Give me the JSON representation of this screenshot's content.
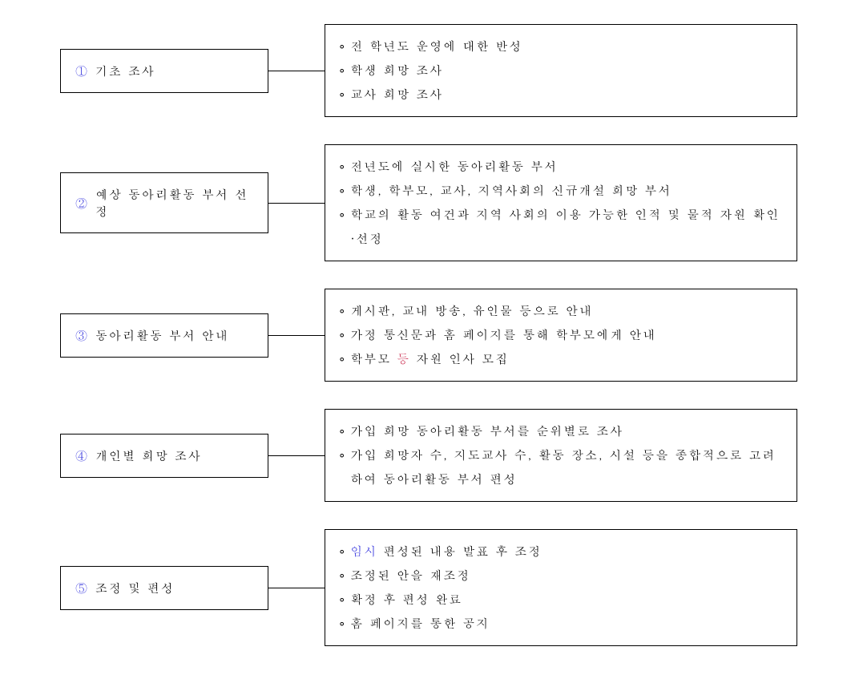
{
  "styling": {
    "background_color": "#ffffff",
    "text_color": "#000000",
    "number_color": "#3333dd",
    "highlight_blue_color": "#3333dd",
    "highlight_red_color": "#cc3355",
    "border_color": "#000000",
    "font_size": 15,
    "letter_spacing": 2,
    "title_box_width": 260,
    "detail_box_width": 590,
    "connector_width": 70,
    "row_gap": 34,
    "line_height": 2,
    "bullet_char": "∘"
  },
  "steps": [
    {
      "number": "①",
      "title": "기초 조사",
      "items": [
        {
          "pre": "전 학년도 운영에 대한 반성"
        },
        {
          "pre": "학생 희망 조사"
        },
        {
          "pre": "교사 희망 조사"
        }
      ]
    },
    {
      "number": "②",
      "title": "예상 동아리활동 부서 선정",
      "items": [
        {
          "pre": "전년도에 실시한 동아리활동 부서"
        },
        {
          "pre": "학생, 학부모, 교사, 지역사회의 신규개설 희망 부서"
        },
        {
          "pre": "학교의 활동 여건과 지역 사회의 이용 가능한 인적 및 물적 자원 확인·선정"
        }
      ]
    },
    {
      "number": "③",
      "title": "동아리활동 부서 안내",
      "items": [
        {
          "pre": "게시판, 교내 방송, 유인물 등으로 안내"
        },
        {
          "pre": "가정 통신문과 홈 페이지를 통해 학부모에게 안내"
        },
        {
          "pre": "학부모 ",
          "hl": "등",
          "post": " 자원 인사 모집",
          "hl_class": "highlight-red"
        }
      ]
    },
    {
      "number": "④",
      "title": "개인별 희망 조사",
      "items": [
        {
          "pre": "가입 희망 동아리활동 부서를 순위별로 조사"
        },
        {
          "pre": "가입 희망자 수, 지도교사 수, 활동 장소, 시설 등을 종합적으로 고려하여 동아리활동 부서 편성"
        }
      ]
    },
    {
      "number": "⑤",
      "title": "조정 및 편성",
      "items": [
        {
          "pre": "",
          "hl": "임시",
          "post": " 편성된 내용 발표 후 조정",
          "hl_class": "highlight-blue"
        },
        {
          "pre": "조정된 안을 재조정"
        },
        {
          "pre": "확정 후 편성 완료"
        },
        {
          "pre": "홈 페이지를 통한 공지"
        }
      ]
    }
  ]
}
